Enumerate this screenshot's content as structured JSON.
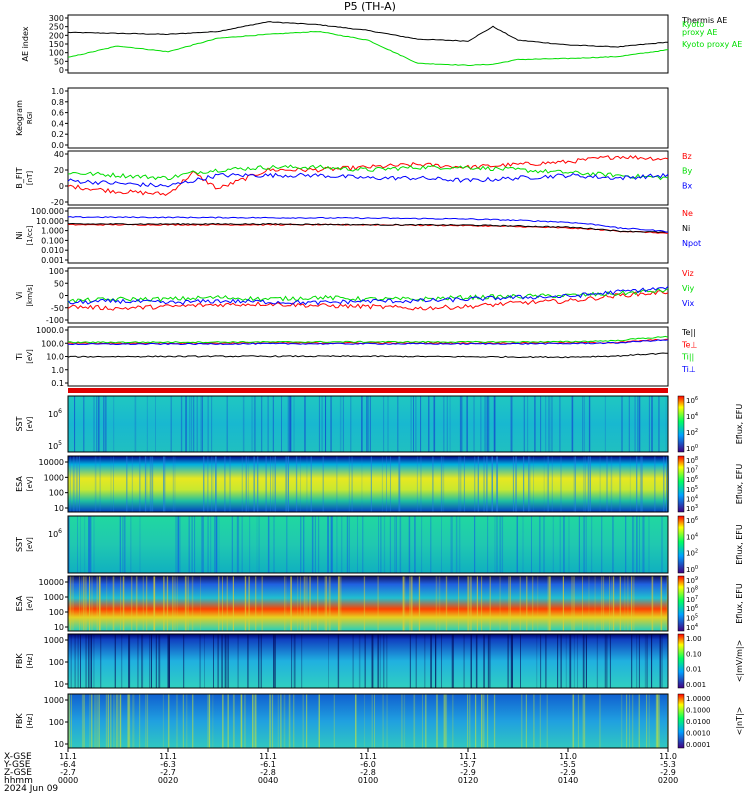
{
  "title": "P5 (TH-A)",
  "date_label": "2024 Jun 09",
  "time_row_label": "hhmm",
  "coord_row_labels": [
    "X-GSE",
    "Y-GSE",
    "Z-GSE"
  ],
  "time_ticks": [
    "0000",
    "0020",
    "0040",
    "0100",
    "0120",
    "0140",
    "0200"
  ],
  "xgse_ticks": [
    "11.1",
    "11.1",
    "11.1",
    "11.1",
    "11.1",
    "11.0",
    "11.0"
  ],
  "ygse_ticks": [
    "-6.4",
    "-6.3",
    "-6.1",
    "-6.0",
    "-5.7",
    "-5.5",
    "-5.3"
  ],
  "zgse_ticks": [
    "-2.7",
    "-2.7",
    "-2.8",
    "-2.8",
    "-2.9",
    "-2.9",
    "-2.9"
  ],
  "chart_data": [
    {
      "type": "line",
      "ylabel": "AE index",
      "yticks": [
        "300",
        "250",
        "200",
        "150",
        "100",
        "50",
        "0"
      ],
      "ylim": [
        0,
        300
      ],
      "x": [
        "0000",
        "0010",
        "0020",
        "0030",
        "0040",
        "0050",
        "0100",
        "0110",
        "0120",
        "0125",
        "0130",
        "0140",
        "0150",
        "0200"
      ],
      "series": [
        {
          "name": "Thermis AE",
          "color": "#000000",
          "values": [
            210,
            205,
            200,
            215,
            265,
            250,
            220,
            175,
            165,
            240,
            170,
            145,
            135,
            160
          ]
        },
        {
          "name": "Kyoto proxy AE",
          "color": "#00dd00",
          "values": [
            80,
            140,
            110,
            180,
            200,
            215,
            170,
            50,
            40,
            45,
            70,
            75,
            85,
            120
          ]
        }
      ],
      "legend_extra": [
        "Kyoto",
        "proxy AE"
      ]
    },
    {
      "type": "line",
      "ylabel": "Keogram",
      "sub_label": "RGI",
      "yticks": [
        "1.0",
        "0.8",
        "0.6",
        "0.4",
        "0.2",
        "0.0"
      ],
      "ylim": [
        0,
        1
      ]
    },
    {
      "type": "line",
      "ylabel": "B_FIT",
      "sub_label": "[nT]",
      "yticks": [
        "40",
        "20",
        "0",
        "-20"
      ],
      "ylim": [
        -40,
        60
      ],
      "x": [
        "0000",
        "0010",
        "0020",
        "0025",
        "0030",
        "0040",
        "0050",
        "0100",
        "0110",
        "0120",
        "0130",
        "0140",
        "0150",
        "0200"
      ],
      "series": [
        {
          "name": "Bz",
          "color": "#ff0000",
          "values": [
            -5,
            -15,
            -20,
            20,
            -10,
            25,
            25,
            30,
            35,
            30,
            35,
            40,
            50,
            45
          ]
        },
        {
          "name": "By",
          "color": "#00dd00",
          "values": [
            20,
            15,
            10,
            20,
            25,
            30,
            30,
            25,
            30,
            30,
            25,
            20,
            15,
            10
          ]
        },
        {
          "name": "Bx",
          "color": "#0000ff",
          "values": [
            5,
            0,
            -5,
            5,
            15,
            15,
            15,
            10,
            10,
            5,
            10,
            15,
            10,
            15
          ]
        }
      ]
    },
    {
      "type": "line",
      "ylabel": "Ni",
      "sub_label": "[1/cc]",
      "yticks": [
        "100.000",
        "10.000",
        "1.000",
        "0.100",
        "0.010",
        "0.001"
      ],
      "ylim": [
        -3,
        2
      ],
      "log": true,
      "x": [
        "0000",
        "0020",
        "0040",
        "0100",
        "0120",
        "0140",
        "0150",
        "0200"
      ],
      "series": [
        {
          "name": "Ne",
          "color": "#ff0000",
          "values": [
            3,
            3,
            3,
            3,
            2.5,
            1.5,
            0.8,
            0.5
          ]
        },
        {
          "name": "Ni",
          "color": "#000000",
          "values": [
            3.5,
            3.5,
            3.5,
            3,
            2.8,
            1.8,
            0.8,
            0.6
          ]
        },
        {
          "name": "Npot",
          "color": "#0000ff",
          "values": [
            15,
            14,
            13,
            12,
            10,
            5,
            1.5,
            0.7
          ]
        }
      ]
    },
    {
      "type": "line",
      "ylabel": "Vi",
      "sub_label": "[km/s]",
      "yticks": [
        "100",
        "50",
        "0",
        "-50",
        "-100"
      ],
      "ylim": [
        -150,
        150
      ],
      "x": [
        "0000",
        "0010",
        "0020",
        "0030",
        "0040",
        "0050",
        "0100",
        "0110",
        "0120",
        "0130",
        "0140",
        "0150",
        "0200"
      ],
      "series": [
        {
          "name": "Viz",
          "color": "#ff0000",
          "values": [
            -60,
            -70,
            -60,
            -50,
            -45,
            -55,
            -60,
            -70,
            -60,
            -40,
            -30,
            0,
            20
          ]
        },
        {
          "name": "Viy",
          "color": "#00dd00",
          "values": [
            -30,
            -20,
            -20,
            -10,
            -20,
            -10,
            -20,
            -20,
            -10,
            -5,
            0,
            10,
            30
          ]
        },
        {
          "name": "Vix",
          "color": "#0000ff",
          "values": [
            -40,
            -30,
            -40,
            -30,
            -35,
            -40,
            -30,
            -30,
            -20,
            -10,
            -5,
            20,
            40
          ]
        }
      ]
    },
    {
      "type": "line",
      "ylabel": "Ti",
      "sub_label": "[eV]",
      "yticks": [
        "1000.0",
        "100.0",
        "10.0",
        "1.0",
        "0.1"
      ],
      "ylim": [
        -1,
        4
      ],
      "log": true,
      "x": [
        "0000",
        "0020",
        "0040",
        "0100",
        "0120",
        "0140",
        "0150",
        "0200"
      ],
      "series": [
        {
          "name": "Te||",
          "color": "#000000",
          "values": [
            30,
            32,
            33,
            33,
            30,
            28,
            35,
            60
          ]
        },
        {
          "name": "Te⊥",
          "color": "#ff0000",
          "values": [
            400,
            420,
            440,
            440,
            430,
            450,
            480,
            900
          ]
        },
        {
          "name": "Ti||",
          "color": "#00dd00",
          "values": [
            500,
            520,
            540,
            550,
            540,
            560,
            700,
            1500
          ]
        },
        {
          "name": "Ti⊥",
          "color": "#0000ff",
          "values": [
            350,
            360,
            380,
            380,
            370,
            390,
            450,
            800
          ]
        }
      ]
    },
    {
      "type": "heatmap",
      "ylabel": "SST",
      "sub_label": "[eV]",
      "ytick_base": "10",
      "yticks_exp": [
        "6",
        "5"
      ],
      "cbar_ticks_exp": [
        "6",
        "4",
        "2",
        "0"
      ],
      "cbar_label": "Eflux, EFU"
    },
    {
      "type": "heatmap",
      "ylabel": "ESA",
      "sub_label": "[eV]",
      "yticks": [
        "10000",
        "1000",
        "100",
        "10"
      ],
      "cbar_ticks_exp": [
        "8",
        "7",
        "6",
        "5",
        "4",
        "3"
      ],
      "cbar_label": "Eflux, EFU"
    },
    {
      "type": "heatmap",
      "ylabel": "SST",
      "sub_label": "[eV]",
      "ytick_base": "10",
      "yticks_exp": [
        "6"
      ],
      "cbar_ticks_exp": [
        "6",
        "4",
        "2",
        "0"
      ],
      "cbar_label": "Eflux, EFU"
    },
    {
      "type": "heatmap",
      "ylabel": "ESA",
      "sub_label": "[eV]",
      "yticks": [
        "10000",
        "1000",
        "100",
        "10"
      ],
      "cbar_ticks_exp": [
        "9",
        "8",
        "7",
        "6",
        "5",
        "4"
      ],
      "cbar_label": "Eflux, EFU"
    },
    {
      "type": "heatmap",
      "ylabel": "FBK",
      "sub_label": "[Hz]",
      "yticks": [
        "1000",
        "100",
        "10"
      ],
      "cbar_ticks": [
        "1.00",
        "0.10",
        "0.01",
        "0.001"
      ],
      "cbar_label": "<|mV/m|>"
    },
    {
      "type": "heatmap",
      "ylabel": "FBK",
      "sub_label": "[Hz]",
      "yticks": [
        "1000",
        "100",
        "10"
      ],
      "cbar_ticks": [
        "1.0000",
        "0.1000",
        "0.0100",
        "0.0010",
        "0.0001"
      ],
      "cbar_label": "<|nT|>"
    }
  ]
}
